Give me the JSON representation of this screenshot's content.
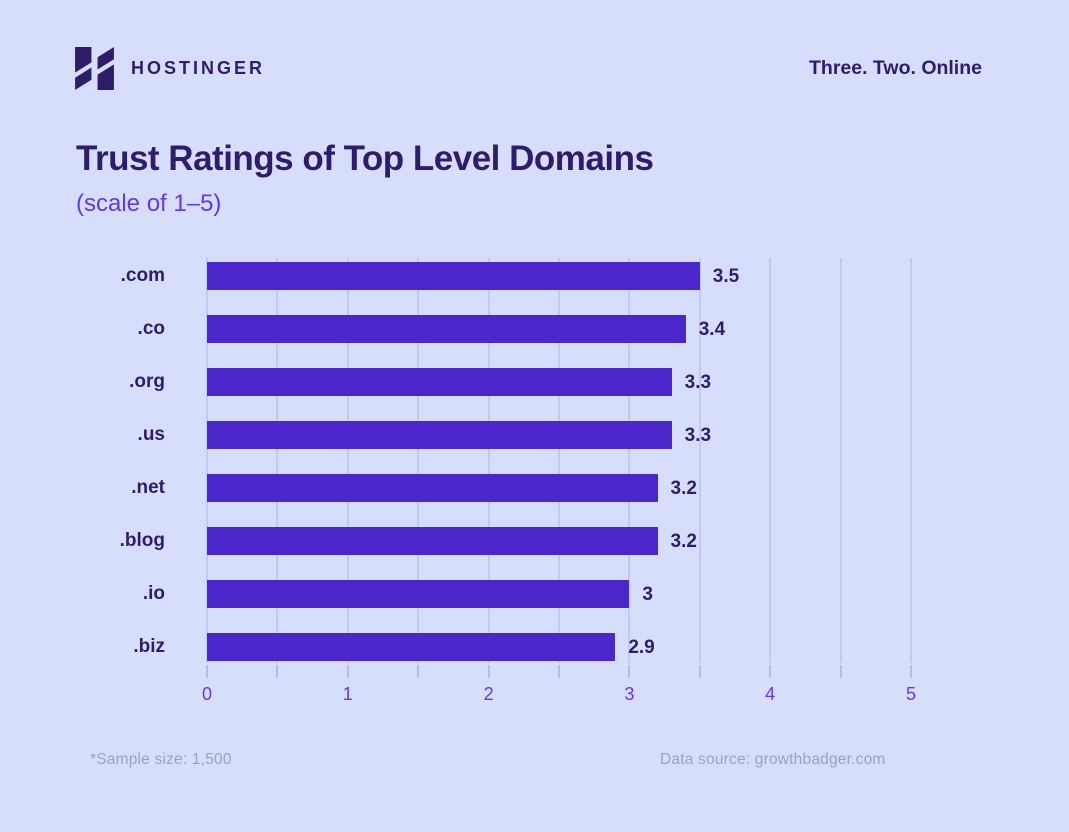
{
  "header": {
    "brand": "HOSTINGER",
    "tagline": "Three. Two. Online"
  },
  "title": "Trust Ratings of Top Level Domains",
  "subtitle": "(scale of 1–5)",
  "chart_data": {
    "type": "bar",
    "orientation": "horizontal",
    "title": "Trust Ratings of Top Level Domains",
    "subtitle": "(scale of 1–5)",
    "categories": [
      ".com",
      ".co",
      ".org",
      ".us",
      ".net",
      ".blog",
      ".io",
      ".biz"
    ],
    "values": [
      3.5,
      3.4,
      3.3,
      3.3,
      3.2,
      3.2,
      3,
      2.9
    ],
    "value_labels": [
      "3.5",
      "3.4",
      "3.3",
      "3.3",
      "3.2",
      "3.2",
      "3",
      "2.9"
    ],
    "xlim": [
      0,
      5
    ],
    "x_major_ticks": [
      0,
      1,
      2,
      3,
      4,
      5
    ],
    "x_major_tick_labels": [
      "0",
      "1",
      "2",
      "3",
      "4",
      "5"
    ],
    "x_minor_tick_step": 0.5,
    "grid": "vertical gridlines every 0.5, behind bars",
    "legend": "none"
  },
  "footer": {
    "sample_note": "*Sample size: 1,500",
    "data_source": "Data source: growthbadger.com"
  },
  "icons": {
    "logo_mark": "hostinger-h-icon"
  },
  "colors": {
    "background": "#d7defc",
    "bar": "#4b27cb",
    "gridline": "#a9b1ed",
    "tick": "#9a93e8",
    "dark_text": "#2f1c6a",
    "accent_purple": "#6438e2",
    "muted_text": "#99a2c6"
  }
}
